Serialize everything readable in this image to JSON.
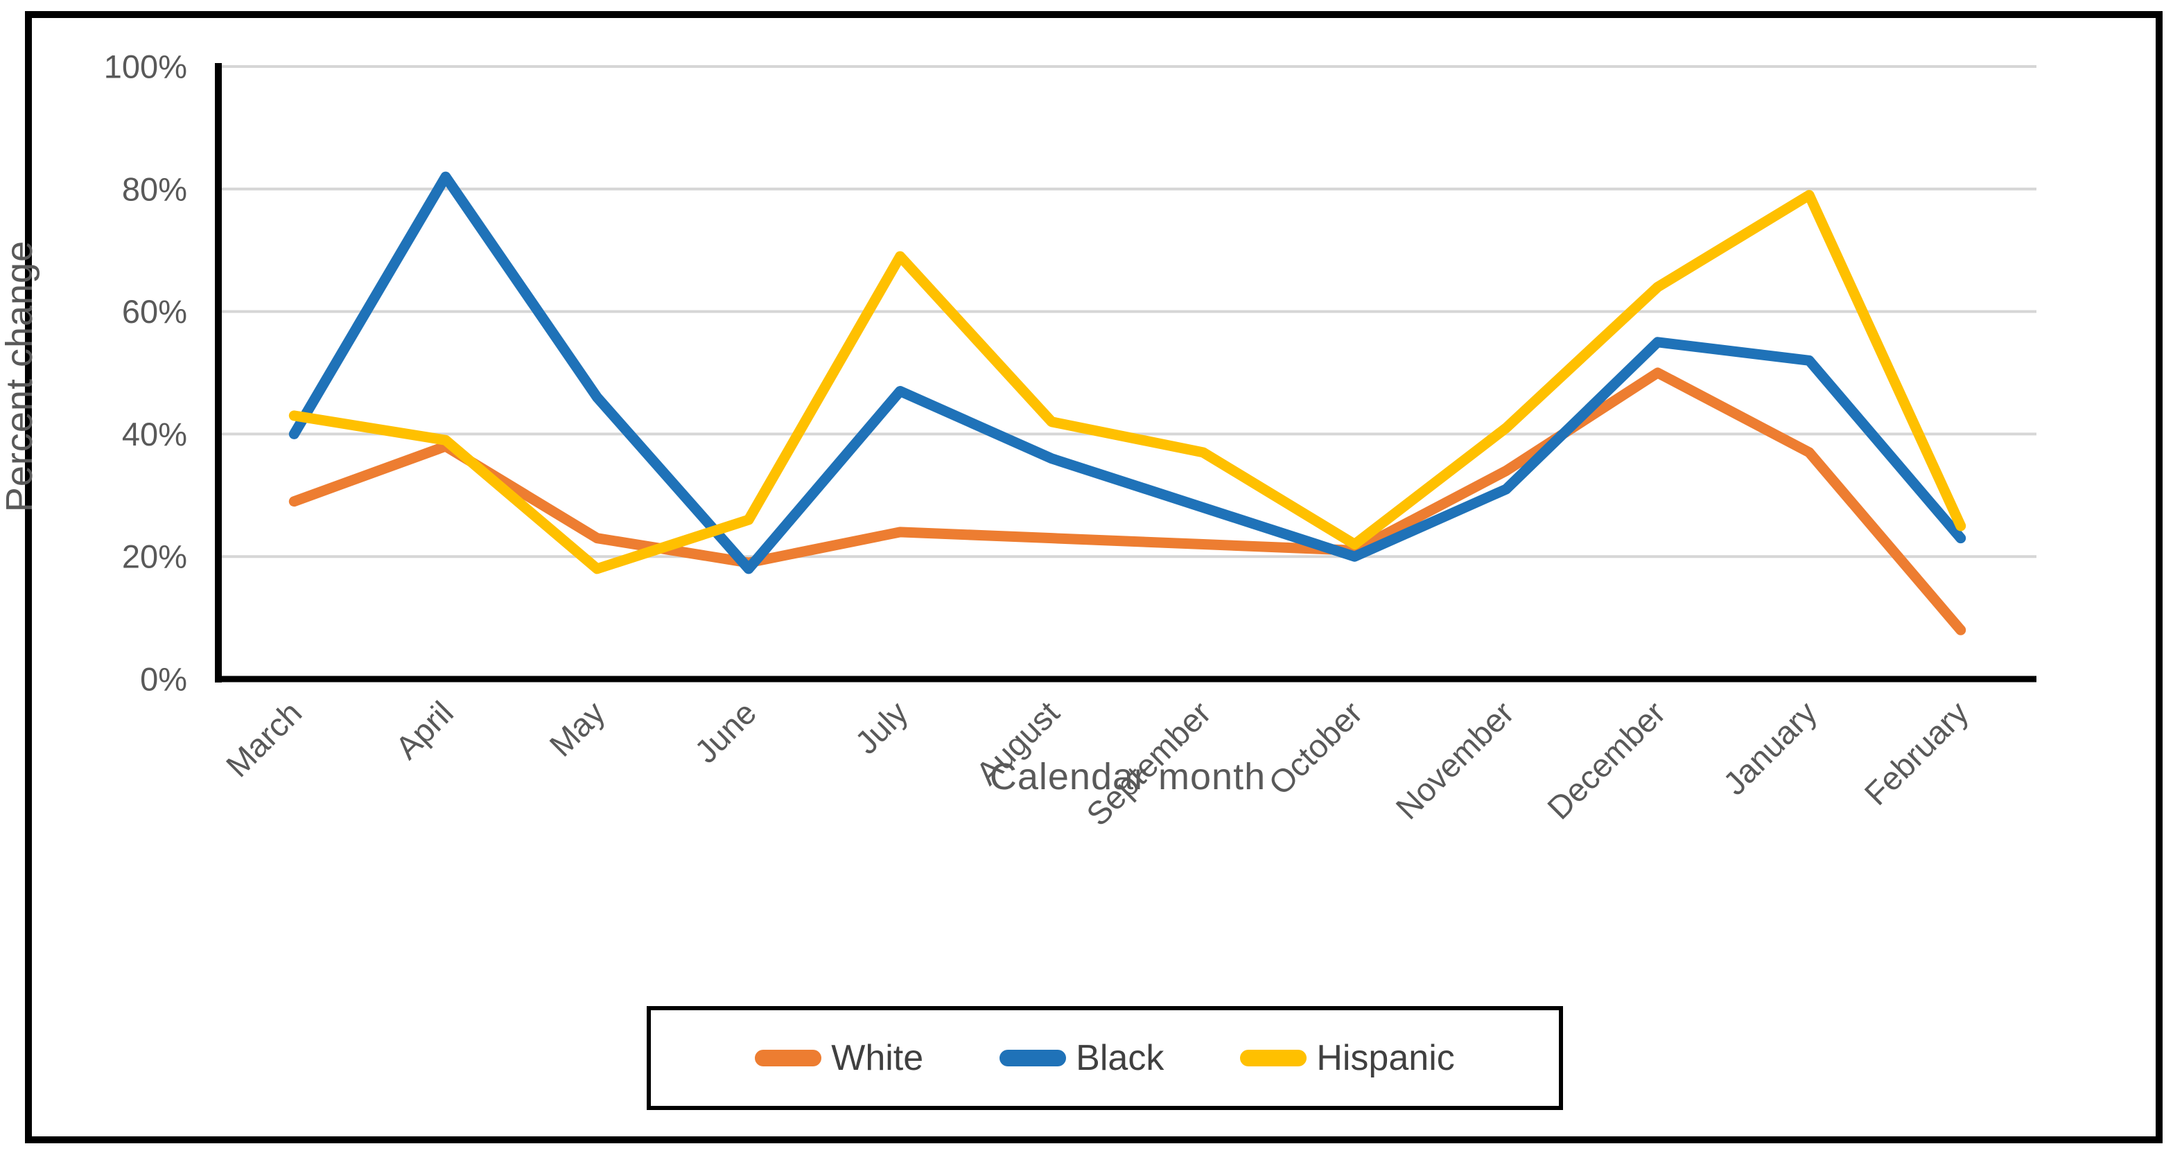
{
  "chart_data": {
    "type": "line",
    "title": "",
    "xlabel": "Calendar month",
    "ylabel": "Percent change",
    "categories": [
      "March",
      "April",
      "May",
      "June",
      "July",
      "August",
      "September",
      "October",
      "November",
      "December",
      "January",
      "February"
    ],
    "series": [
      {
        "name": "White",
        "color": "#ED7D31",
        "values": [
          29,
          38,
          23,
          19,
          24,
          23,
          22,
          21,
          34,
          50,
          37,
          8
        ]
      },
      {
        "name": "Black",
        "color": "#1F72B8",
        "values": [
          40,
          82,
          46,
          18,
          47,
          36,
          28,
          20,
          31,
          55,
          52,
          23
        ]
      },
      {
        "name": "Hispanic",
        "color": "#FFC000",
        "values": [
          43,
          39,
          18,
          26,
          69,
          42,
          37,
          22,
          41,
          64,
          79,
          25
        ]
      }
    ],
    "y_ticks": [
      {
        "value": 0,
        "label": "0%"
      },
      {
        "value": 20,
        "label": "20%"
      },
      {
        "value": 40,
        "label": "40%"
      },
      {
        "value": 60,
        "label": "60%"
      },
      {
        "value": 80,
        "label": "80%"
      },
      {
        "value": 100,
        "label": "100%"
      }
    ],
    "ylim": [
      0,
      100
    ],
    "grid": "horizontal",
    "legend_position": "bottom-center",
    "colors": {
      "gridline": "#D6D6D6",
      "axis": "#000000",
      "tick_text": "#595959",
      "axis_title_text": "#595959",
      "legend_text": "#404040",
      "background": "#FFFFFF",
      "border": "#000000"
    }
  }
}
